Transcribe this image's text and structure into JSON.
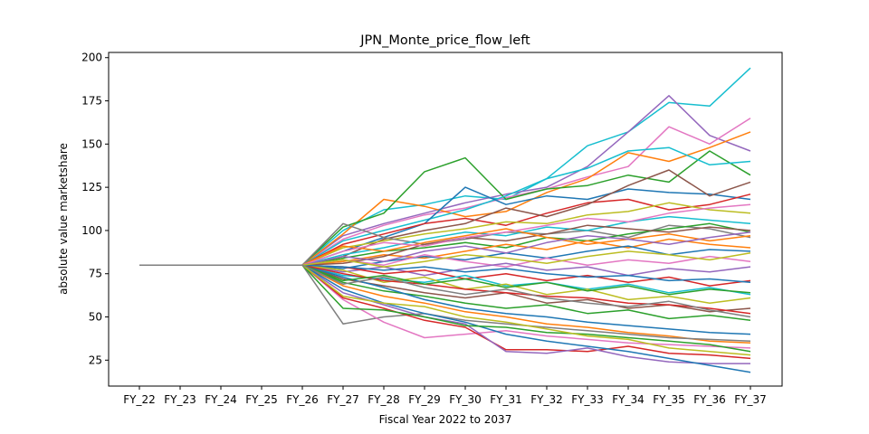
{
  "chart_data": {
    "type": "line",
    "title": "JPN_Monte_price_flow_left",
    "xlabel": "Fiscal Year 2022 to 2037",
    "ylabel": "absolute value marketshare",
    "categories": [
      "FY_22",
      "FY_23",
      "FY_24",
      "FY_25",
      "FY_26",
      "FY_27",
      "FY_28",
      "FY_29",
      "FY_30",
      "FY_31",
      "FY_32",
      "FY_33",
      "FY_34",
      "FY_35",
      "FY_36",
      "FY_37"
    ],
    "yticks": [
      "25",
      "50",
      "75",
      "100",
      "125",
      "150",
      "175",
      "200"
    ],
    "ylim": [
      10,
      203
    ],
    "grid": false,
    "legend": "none",
    "color_cycle": [
      "#1f77b4",
      "#ff7f0e",
      "#2ca02c",
      "#d62728",
      "#9467bd",
      "#8c564b",
      "#e377c2",
      "#7f7f7f",
      "#bcbd22",
      "#17becf"
    ],
    "series": [
      {
        "color": "#17becf",
        "values": [
          80,
          80,
          80,
          80,
          80,
          100,
          112,
          115,
          120,
          118,
          130,
          149,
          157,
          174,
          172,
          194
        ]
      },
      {
        "color": "#9467bd",
        "values": [
          80,
          80,
          80,
          80,
          80,
          97,
          104,
          110,
          116,
          121,
          125,
          137,
          157,
          178,
          155,
          146
        ]
      },
      {
        "color": "#e377c2",
        "values": [
          80,
          80,
          80,
          80,
          80,
          95,
          103,
          109,
          113,
          119,
          124,
          131,
          137,
          160,
          150,
          165
        ]
      },
      {
        "color": "#ff7f0e",
        "values": [
          80,
          80,
          80,
          80,
          80,
          98,
          118,
          114,
          108,
          111,
          122,
          130,
          145,
          140,
          148,
          157
        ]
      },
      {
        "color": "#2ca02c",
        "values": [
          80,
          80,
          80,
          80,
          80,
          102,
          110,
          134,
          142,
          118,
          124,
          126,
          132,
          128,
          146,
          132
        ]
      },
      {
        "color": "#17becf",
        "values": [
          80,
          80,
          80,
          80,
          80,
          94,
          100,
          106,
          112,
          120,
          130,
          136,
          146,
          148,
          138,
          140
        ]
      },
      {
        "color": "#1f77b4",
        "values": [
          80,
          80,
          80,
          80,
          80,
          88,
          96,
          104,
          125,
          115,
          120,
          118,
          124,
          122,
          121,
          118
        ]
      },
      {
        "color": "#d62728",
        "values": [
          80,
          80,
          80,
          80,
          80,
          92,
          98,
          104,
          107,
          103,
          110,
          116,
          118,
          112,
          115,
          121
        ]
      },
      {
        "color": "#8c564b",
        "values": [
          80,
          80,
          80,
          80,
          80,
          85,
          95,
          100,
          104,
          113,
          108,
          115,
          126,
          135,
          120,
          128
        ]
      },
      {
        "color": "#bcbd22",
        "values": [
          80,
          80,
          80,
          80,
          80,
          90,
          94,
          98,
          101,
          105,
          104,
          109,
          111,
          116,
          112,
          110
        ]
      },
      {
        "color": "#7f7f7f",
        "values": [
          80,
          80,
          80,
          80,
          80,
          104,
          96,
          92,
          95,
          99,
          98,
          100,
          96,
          103,
          101,
          96
        ]
      },
      {
        "color": "#2ca02c",
        "values": [
          80,
          80,
          80,
          80,
          80,
          84,
          88,
          90,
          93,
          90,
          96,
          94,
          98,
          101,
          104,
          99
        ]
      },
      {
        "color": "#ff7f0e",
        "values": [
          80,
          80,
          80,
          80,
          80,
          82,
          86,
          84,
          88,
          92,
          89,
          94,
          90,
          95,
          92,
          90
        ]
      },
      {
        "color": "#1f77b4",
        "values": [
          80,
          80,
          80,
          80,
          80,
          78,
          82,
          85,
          83,
          87,
          84,
          88,
          91,
          86,
          89,
          88
        ]
      },
      {
        "color": "#e377c2",
        "values": [
          80,
          80,
          80,
          80,
          80,
          83,
          80,
          86,
          82,
          79,
          84,
          80,
          83,
          81,
          85,
          82
        ]
      },
      {
        "color": "#9467bd",
        "values": [
          80,
          80,
          80,
          80,
          80,
          76,
          79,
          74,
          78,
          81,
          77,
          79,
          74,
          78,
          76,
          79
        ]
      },
      {
        "color": "#d62728",
        "values": [
          80,
          80,
          80,
          80,
          80,
          79,
          75,
          77,
          72,
          75,
          71,
          74,
          70,
          73,
          68,
          71
        ]
      },
      {
        "color": "#17becf",
        "values": [
          80,
          80,
          80,
          80,
          80,
          74,
          72,
          70,
          74,
          68,
          70,
          66,
          69,
          64,
          67,
          63
        ]
      },
      {
        "color": "#bcbd22",
        "values": [
          80,
          80,
          80,
          80,
          80,
          77,
          70,
          73,
          66,
          69,
          63,
          66,
          60,
          62,
          58,
          61
        ]
      },
      {
        "color": "#8c564b",
        "values": [
          80,
          80,
          80,
          80,
          80,
          72,
          68,
          64,
          61,
          64,
          58,
          60,
          55,
          57,
          53,
          55
        ]
      },
      {
        "color": "#2ca02c",
        "values": [
          80,
          80,
          80,
          80,
          80,
          70,
          65,
          62,
          58,
          55,
          57,
          52,
          54,
          49,
          51,
          48
        ]
      },
      {
        "color": "#1f77b4",
        "values": [
          80,
          80,
          80,
          80,
          80,
          73,
          67,
          60,
          55,
          52,
          50,
          47,
          45,
          43,
          41,
          40
        ]
      },
      {
        "color": "#ff7f0e",
        "values": [
          80,
          80,
          80,
          80,
          80,
          68,
          62,
          58,
          53,
          50,
          46,
          44,
          41,
          39,
          36,
          35
        ]
      },
      {
        "color": "#7f7f7f",
        "values": [
          80,
          80,
          80,
          80,
          80,
          46,
          50,
          52,
          48,
          46,
          44,
          42,
          40,
          38,
          37,
          36
        ]
      },
      {
        "color": "#e377c2",
        "values": [
          80,
          80,
          80,
          80,
          80,
          60,
          47,
          38,
          40,
          42,
          39,
          37,
          35,
          34,
          33,
          32
        ]
      },
      {
        "color": "#d62728",
        "values": [
          80,
          80,
          80,
          80,
          80,
          61,
          55,
          48,
          44,
          31,
          31,
          30,
          33,
          29,
          28,
          26
        ]
      },
      {
        "color": "#9467bd",
        "values": [
          80,
          80,
          80,
          80,
          80,
          64,
          57,
          50,
          46,
          30,
          29,
          32,
          27,
          24,
          23,
          23
        ]
      },
      {
        "color": "#1f77b4",
        "values": [
          80,
          80,
          80,
          80,
          80,
          66,
          58,
          52,
          47,
          40,
          36,
          33,
          30,
          26,
          22,
          18
        ]
      },
      {
        "color": "#2ca02c",
        "values": [
          80,
          80,
          80,
          80,
          80,
          55,
          54,
          50,
          45,
          44,
          41,
          40,
          38,
          36,
          34,
          30
        ]
      },
      {
        "color": "#bcbd22",
        "values": [
          80,
          80,
          80,
          80,
          80,
          62,
          58,
          56,
          50,
          47,
          43,
          39,
          37,
          32,
          30,
          28
        ]
      },
      {
        "color": "#17becf",
        "values": [
          80,
          80,
          80,
          80,
          80,
          86,
          90,
          95,
          99,
          97,
          102,
          100,
          105,
          108,
          106,
          104
        ]
      },
      {
        "color": "#8c564b",
        "values": [
          80,
          80,
          80,
          80,
          80,
          81,
          85,
          92,
          96,
          94,
          98,
          103,
          101,
          99,
          102,
          100
        ]
      },
      {
        "color": "#ff7f0e",
        "values": [
          80,
          80,
          80,
          80,
          80,
          91,
          88,
          93,
          97,
          101,
          96,
          92,
          95,
          98,
          94,
          97
        ]
      },
      {
        "color": "#d62728",
        "values": [
          80,
          80,
          80,
          80,
          80,
          75,
          71,
          69,
          66,
          64,
          62,
          61,
          58,
          57,
          55,
          52
        ]
      },
      {
        "color": "#1f77b4",
        "values": [
          80,
          80,
          80,
          80,
          80,
          79,
          77,
          79,
          76,
          78,
          75,
          73,
          74,
          71,
          72,
          70
        ]
      },
      {
        "color": "#e377c2",
        "values": [
          80,
          80,
          80,
          80,
          80,
          88,
          93,
          91,
          96,
          99,
          103,
          107,
          105,
          110,
          113,
          115
        ]
      },
      {
        "color": "#9467bd",
        "values": [
          80,
          80,
          80,
          80,
          80,
          85,
          82,
          88,
          91,
          87,
          93,
          97,
          95,
          92,
          96,
          99
        ]
      },
      {
        "color": "#2ca02c",
        "values": [
          80,
          80,
          80,
          80,
          80,
          71,
          74,
          69,
          72,
          67,
          70,
          65,
          68,
          63,
          66,
          64
        ]
      },
      {
        "color": "#bcbd22",
        "values": [
          80,
          80,
          80,
          80,
          80,
          83,
          79,
          82,
          86,
          84,
          81,
          85,
          88,
          86,
          83,
          87
        ]
      },
      {
        "color": "#7f7f7f",
        "values": [
          80,
          80,
          80,
          80,
          80,
          69,
          73,
          67,
          63,
          66,
          61,
          58,
          56,
          59,
          54,
          50
        ]
      }
    ]
  }
}
